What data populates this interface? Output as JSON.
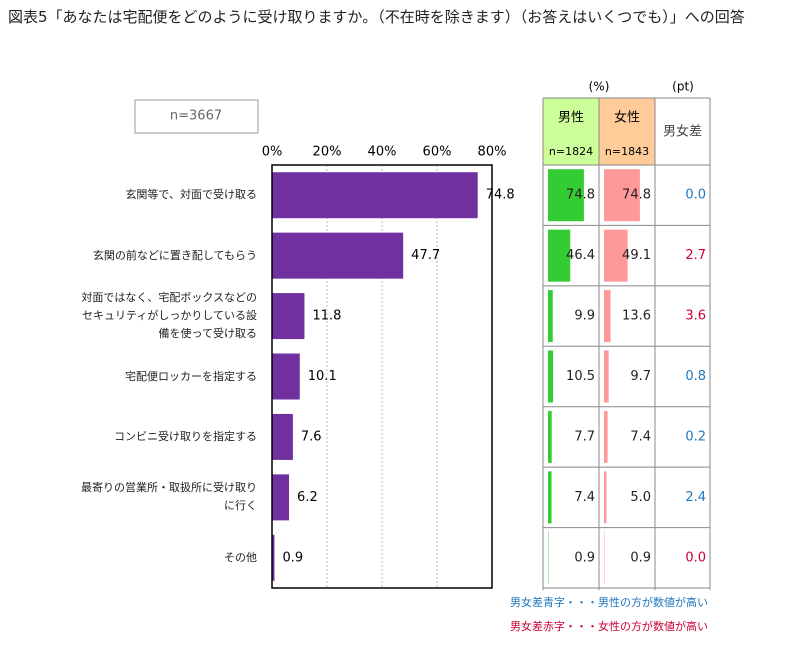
{
  "title": "図表5「あなたは宅配便をどのように受け取りますか。（不在時を除きます）（お答えはいくつでも）」への回答",
  "sample_label": "n=3667",
  "chart_data": {
    "type": "bar",
    "categories": [
      "玄関等で、対面で受け取る",
      "玄関の前などに置き配してもらう",
      "対面ではなく、宅配ボックスなどのセキュリティがしっかりしている設備を使って受け取る",
      "宅配便ロッカーを指定する",
      "コンビニ受け取りを指定する",
      "最寄りの営業所・取扱所に受け取りに行く",
      "その他"
    ],
    "values": [
      74.8,
      47.7,
      11.8,
      10.1,
      7.6,
      6.2,
      0.9
    ],
    "color": "#7030a0",
    "xlim": [
      0,
      80
    ],
    "xticks": [
      {
        "value": 0,
        "label": "0%"
      },
      {
        "value": 20,
        "label": "20%"
      },
      {
        "value": 40,
        "label": "40%"
      },
      {
        "value": 60,
        "label": "60%"
      },
      {
        "value": 80,
        "label": "80%"
      }
    ],
    "grid": true
  },
  "table": {
    "unit_labels": [
      "(%)",
      "(pt)"
    ],
    "columns": [
      {
        "name": "男性",
        "n": "n=1824",
        "header_color": "#ccff99",
        "color": "#33cc33",
        "values": [
          74.8,
          46.4,
          9.9,
          10.5,
          7.7,
          7.4,
          0.9
        ]
      },
      {
        "name": "女性",
        "n": "n=1843",
        "header_color": "#ffcc99",
        "color": "#ff9999",
        "values": [
          74.8,
          49.1,
          13.6,
          9.7,
          7.4,
          5.0,
          0.9
        ],
        "value_labels": [
          "74.8",
          "49.1",
          "13.6",
          "9.7",
          "7.4",
          "5.0",
          "0.9"
        ]
      },
      {
        "name": "男女差",
        "values": [
          0.0,
          2.7,
          3.6,
          0.8,
          0.2,
          2.4,
          0.0
        ],
        "value_labels": [
          "0.0",
          "2.7",
          "3.6",
          "0.8",
          "0.2",
          "2.4",
          "0.0"
        ],
        "colors": [
          "#1f77c0",
          "#cc0033",
          "#cc0033",
          "#1f77c0",
          "#1f77c0",
          "#1f77c0",
          "#cc0033"
        ]
      }
    ]
  },
  "notes": [
    {
      "text": "男女差青字・・・男性の方が数値が高い",
      "color": "#1f77c0"
    },
    {
      "text": "男女差赤字・・・女性の方が数値が高い",
      "color": "#cc0033"
    }
  ]
}
